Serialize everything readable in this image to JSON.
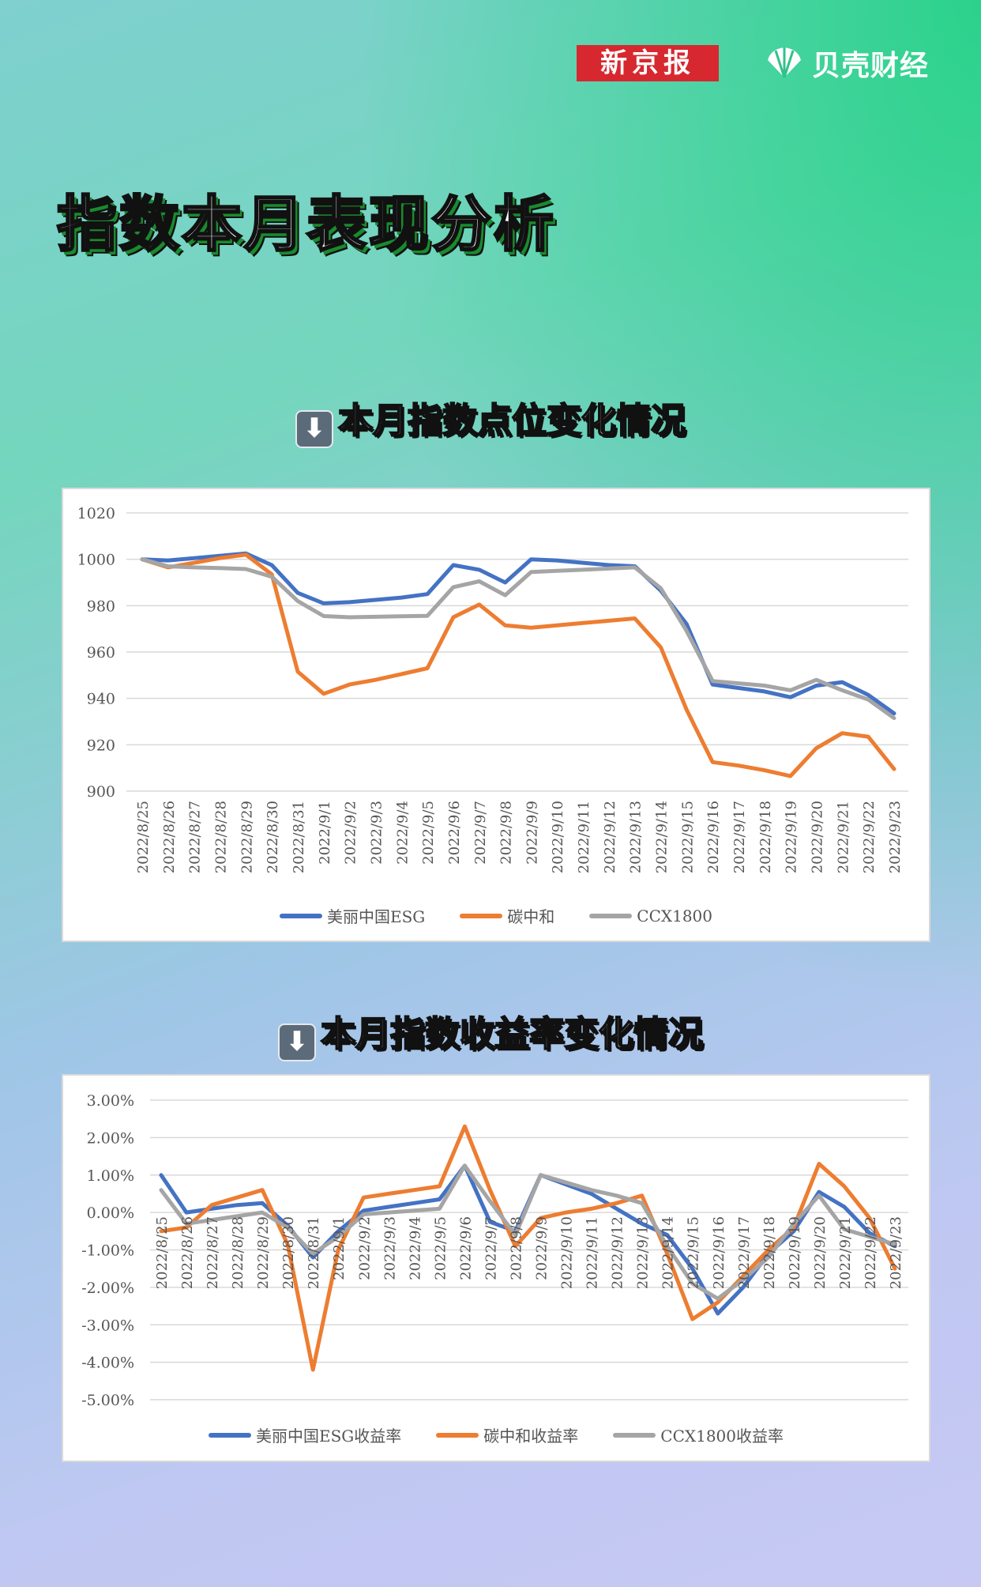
{
  "header": {
    "brand_xjb": "新京报",
    "brand_beike": "贝壳财经",
    "title": "指数本月表现分析"
  },
  "section1": {
    "title": "本月指数点位变化情况",
    "icon": "down-arrow-icon"
  },
  "section2": {
    "title": "本月指数收益率变化情况",
    "icon": "down-arrow-icon"
  },
  "chart_data": [
    {
      "type": "line",
      "categories": [
        "2022/8/25",
        "2022/8/26",
        "2022/8/27",
        "2022/8/28",
        "2022/8/29",
        "2022/8/30",
        "2022/8/31",
        "2022/9/1",
        "2022/9/2",
        "2022/9/3",
        "2022/9/4",
        "2022/9/5",
        "2022/9/6",
        "2022/9/7",
        "2022/9/8",
        "2022/9/9",
        "2022/9/10",
        "2022/9/11",
        "2022/9/12",
        "2022/9/13",
        "2022/9/14",
        "2022/9/15",
        "2022/9/16",
        "2022/9/17",
        "2022/9/18",
        "2022/9/19",
        "2022/9/20",
        "2022/9/21",
        "2022/9/22",
        "2022/9/23"
      ],
      "ylim": [
        900,
        1020
      ],
      "yticks": [
        "1020",
        "1000",
        "980",
        "960",
        "940",
        "920",
        "900"
      ],
      "grid": true,
      "legend": "bottom",
      "series": [
        {
          "name": "美丽中国ESG",
          "color": "#4472c4",
          "values": [
            1000,
            999.5,
            1000.5,
            1001.5,
            1002.5,
            997.5,
            985.5,
            981,
            981.5,
            982.5,
            983.5,
            985,
            997.5,
            995.5,
            990,
            1000,
            999.5,
            998.5,
            997.5,
            997,
            986.5,
            972,
            946,
            944.5,
            943,
            940.5,
            945.5,
            947,
            941.5,
            933.5
          ]
        },
        {
          "name": "碳中和",
          "color": "#ed7d31",
          "values": [
            1000,
            996.5,
            998.5,
            1000.5,
            1002,
            993.5,
            951.5,
            942,
            946,
            948,
            950.5,
            953,
            975,
            980.5,
            971.5,
            970.5,
            971.5,
            972.5,
            973.5,
            974.5,
            962,
            935,
            912.5,
            911,
            909,
            906.5,
            918.5,
            925,
            923.5,
            909.5
          ]
        },
        {
          "name": "CCX1800",
          "color": "#a5a5a5",
          "values": [
            1000,
            997,
            996.5,
            996.2,
            995.8,
            992.5,
            982,
            975.5,
            975,
            975.2,
            975.4,
            975.6,
            988,
            990.5,
            984.5,
            994.5,
            995,
            995.5,
            996,
            996.5,
            987.5,
            969,
            947.5,
            946.5,
            945.5,
            943.5,
            948,
            943.5,
            939.5,
            931.5
          ]
        }
      ]
    },
    {
      "type": "line",
      "categories": [
        "2022/8/25",
        "2022/8/26",
        "2022/8/27",
        "2022/8/28",
        "2022/8/29",
        "2022/8/30",
        "2022/8/31",
        "2022/9/1",
        "2022/9/2",
        "2022/9/3",
        "2022/9/4",
        "2022/9/5",
        "2022/9/6",
        "2022/9/7",
        "2022/9/8",
        "2022/9/9",
        "2022/9/10",
        "2022/9/11",
        "2022/9/12",
        "2022/9/13",
        "2022/9/14",
        "2022/9/15",
        "2022/9/16",
        "2022/9/17",
        "2022/9/18",
        "2022/9/19",
        "2022/9/20",
        "2022/9/21",
        "2022/9/22",
        "2022/9/23"
      ],
      "ylim": [
        -5,
        3
      ],
      "yticks": [
        "3.00%",
        "2.00%",
        "1.00%",
        "0.00%",
        "-1.00%",
        "-2.00%",
        "-3.00%",
        "-4.00%",
        "-5.00%"
      ],
      "grid": true,
      "legend": "bottom",
      "series": [
        {
          "name": "美丽中国ESG收益率",
          "color": "#4472c4",
          "values": [
            1.0,
            0.0,
            0.1,
            0.2,
            0.25,
            -0.35,
            -1.2,
            -0.5,
            0.05,
            0.15,
            0.25,
            0.35,
            1.25,
            -0.25,
            -0.5,
            1.0,
            0.75,
            0.5,
            0.1,
            -0.3,
            -0.6,
            -1.5,
            -2.7,
            -2.0,
            -1.1,
            -0.5,
            0.55,
            0.15,
            -0.55,
            -0.9
          ]
        },
        {
          "name": "碳中和收益率",
          "color": "#ed7d31",
          "values": [
            -0.5,
            -0.4,
            0.2,
            0.4,
            0.6,
            -0.85,
            -4.2,
            -1.0,
            0.4,
            0.5,
            0.6,
            0.7,
            2.3,
            0.6,
            -0.9,
            -0.15,
            0.0,
            0.1,
            0.25,
            0.45,
            -1.1,
            -2.85,
            -2.4,
            -1.7,
            -1.0,
            -0.4,
            1.3,
            0.7,
            -0.15,
            -1.5
          ]
        },
        {
          "name": "CCX1800收益率",
          "color": "#a5a5a5",
          "values": [
            0.6,
            -0.3,
            -0.2,
            -0.1,
            0.0,
            -0.4,
            -1.1,
            -0.65,
            -0.05,
            0.0,
            0.05,
            0.1,
            1.25,
            0.3,
            -0.6,
            1.0,
            0.8,
            0.6,
            0.45,
            0.25,
            -0.9,
            -1.9,
            -2.3,
            -1.8,
            -1.2,
            -0.3,
            0.45,
            -0.45,
            -0.65,
            -0.85
          ]
        }
      ]
    }
  ]
}
